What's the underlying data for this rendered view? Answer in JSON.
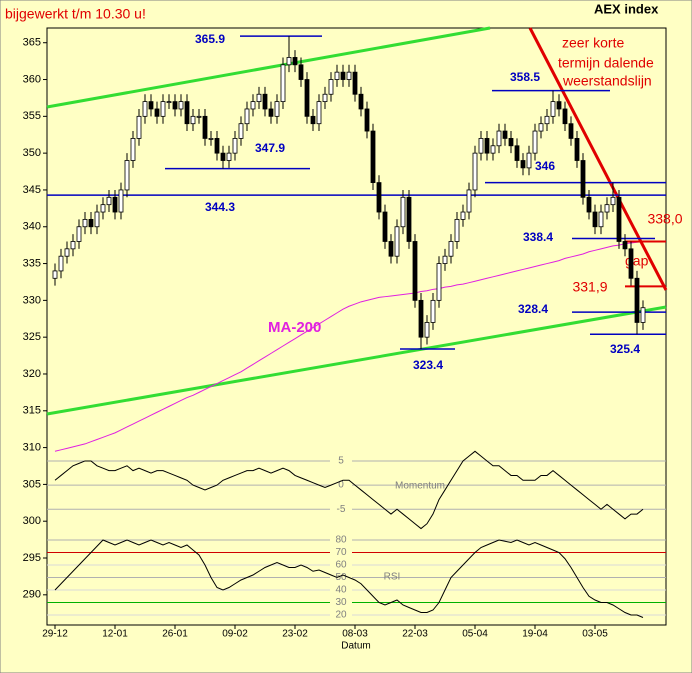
{
  "chart_data": {
    "type": "candlestick",
    "title": "AEX index",
    "subtitle": "bijgewerkt t/m 10.30 u!",
    "x_label": "Datum",
    "categories": [
      "29-12",
      null,
      null,
      null,
      null,
      null,
      null,
      null,
      null,
      null,
      "12-01",
      null,
      null,
      null,
      null,
      null,
      null,
      null,
      null,
      null,
      "26-01",
      null,
      null,
      null,
      null,
      null,
      null,
      null,
      null,
      null,
      "09-02",
      null,
      null,
      null,
      null,
      null,
      null,
      null,
      null,
      null,
      "23-02",
      null,
      null,
      null,
      null,
      null,
      null,
      null,
      null,
      null,
      "08-03",
      null,
      null,
      null,
      null,
      null,
      null,
      null,
      null,
      null,
      "22-03",
      null,
      null,
      null,
      null,
      null,
      null,
      null,
      null,
      null,
      "05-04",
      null,
      null,
      null,
      null,
      null,
      null,
      null,
      null,
      null,
      "19-04",
      null,
      null,
      null,
      null,
      null,
      null,
      null,
      null,
      null,
      "03-05",
      null,
      null,
      null,
      null,
      null,
      null,
      null,
      null
    ],
    "open": [
      333,
      334,
      336,
      337,
      338,
      340,
      341,
      340,
      342,
      343,
      344,
      342,
      345,
      349,
      352,
      355,
      357,
      356,
      355,
      357,
      357,
      356,
      357,
      354,
      355,
      355,
      352,
      352,
      350,
      349,
      350,
      352,
      354,
      356,
      357,
      358,
      356,
      355,
      357,
      362,
      363,
      362,
      360,
      355,
      354,
      357,
      358,
      360,
      361,
      360,
      361,
      358,
      356,
      353,
      346,
      342,
      338,
      336,
      340,
      344,
      338,
      330,
      325,
      327,
      330,
      335,
      336,
      338,
      341,
      342,
      345,
      350,
      352,
      350,
      351,
      353,
      352,
      351,
      349,
      348,
      350,
      353,
      354,
      355,
      357,
      356,
      354,
      352,
      349,
      344,
      342,
      340,
      342,
      343,
      344,
      338,
      337,
      333,
      327
    ],
    "high": [
      335,
      337,
      338,
      339,
      341,
      342,
      342,
      343,
      344,
      345,
      345,
      346,
      350,
      353,
      356,
      358,
      358,
      357,
      358,
      358,
      358,
      358,
      358,
      356,
      356,
      356,
      353,
      353,
      351,
      351,
      353,
      355,
      357,
      358,
      359,
      359,
      357,
      358,
      363,
      365.9,
      364,
      363,
      361,
      356,
      358,
      359,
      361,
      362,
      362,
      362,
      362,
      359,
      357,
      354,
      347,
      343,
      339,
      341,
      345,
      345,
      339,
      331,
      328,
      331,
      336,
      337,
      339,
      342,
      343,
      346,
      351,
      353,
      353,
      352,
      354,
      354,
      353,
      352,
      350,
      351,
      354,
      355,
      356,
      358.5,
      358,
      357,
      355,
      353,
      350,
      345,
      343,
      343,
      344,
      346,
      345,
      339,
      338,
      334,
      330
    ],
    "low": [
      332,
      333,
      335,
      336,
      337,
      339,
      339,
      339,
      341,
      342,
      341,
      341,
      344,
      348,
      351,
      354,
      355,
      354,
      354,
      356,
      355,
      355,
      353,
      353,
      354,
      351,
      351,
      349,
      347.9,
      348,
      349,
      351,
      353,
      355,
      356,
      355,
      354,
      354,
      356,
      361,
      361,
      359,
      354,
      353,
      353,
      356,
      357,
      359,
      359,
      359,
      357,
      355,
      352,
      345,
      341,
      337,
      335,
      335,
      339,
      337,
      329,
      323.4,
      324,
      326,
      329,
      334,
      335,
      337,
      340,
      341,
      344,
      349,
      349,
      349,
      350,
      351,
      350,
      348,
      347,
      347,
      349,
      352,
      353,
      354,
      355,
      353,
      351,
      348,
      343,
      341,
      339,
      339,
      341,
      342,
      337,
      336,
      332,
      325.4,
      326
    ],
    "close": [
      334,
      336,
      337,
      338,
      340,
      341,
      340,
      342,
      343,
      344,
      342,
      345,
      349,
      352,
      355,
      357,
      356,
      355,
      357,
      357,
      356,
      357,
      354,
      355,
      355,
      352,
      352,
      350,
      349,
      350,
      352,
      354,
      356,
      357,
      358,
      356,
      355,
      357,
      362,
      363,
      362,
      360,
      355,
      354,
      357,
      358,
      360,
      361,
      360,
      361,
      358,
      356,
      353,
      346,
      342,
      338,
      336,
      340,
      344,
      338,
      330,
      325,
      327,
      330,
      335,
      336,
      338,
      341,
      342,
      345,
      350,
      352,
      350,
      351,
      353,
      352,
      351,
      349,
      348,
      350,
      353,
      354,
      355,
      357,
      356,
      354,
      352,
      349,
      344,
      342,
      340,
      342,
      343,
      344,
      338,
      337,
      333,
      327,
      329
    ],
    "ma200": {
      "name": "MA-200",
      "color": "#e020e0",
      "values": [
        309.5,
        309.7,
        309.9,
        310.1,
        310.3,
        310.5,
        310.8,
        311.1,
        311.4,
        311.7,
        312,
        312.4,
        312.8,
        313.2,
        313.6,
        314,
        314.4,
        314.8,
        315.2,
        315.6,
        316,
        316.4,
        316.8,
        317.1,
        317.5,
        317.9,
        318.3,
        318.7,
        319.1,
        319.5,
        319.9,
        320.3,
        320.8,
        321.3,
        321.8,
        322.3,
        322.8,
        323.3,
        323.8,
        324.3,
        324.8,
        325.3,
        325.8,
        326.3,
        326.8,
        327.3,
        327.8,
        328.3,
        328.8,
        329.2,
        329.5,
        329.8,
        330,
        330.2,
        330.4,
        330.5,
        330.6,
        330.7,
        330.8,
        330.9,
        331,
        331.2,
        331.3,
        331.5,
        331.6,
        331.8,
        331.9,
        332.1,
        332.2,
        332.4,
        332.6,
        332.8,
        333,
        333.2,
        333.4,
        333.6,
        333.8,
        334,
        334.2,
        334.4,
        334.6,
        334.8,
        335,
        335.2,
        335.4,
        335.7,
        335.9,
        336.1,
        336.3,
        336.6,
        336.8,
        337,
        337.2,
        337.4,
        337.5,
        337.7,
        337.8,
        337.9,
        338
      ]
    },
    "ylim": [
      285.9,
      367
    ],
    "yticks": [
      290,
      295,
      300,
      305,
      310,
      315,
      320,
      325,
      330,
      335,
      340,
      345,
      350,
      355,
      360,
      365
    ],
    "indicators": [
      {
        "name": "Momentum",
        "ylim": [
          -9.3,
          8.1
        ],
        "yticks": [
          5,
          0,
          -5
        ],
        "line_colors": [
          "#b0b0b0",
          "#b0b0b0",
          "#b0b0b0"
        ],
        "values": [
          1,
          2,
          3,
          4,
          4.5,
          5,
          5,
          4,
          3.5,
          3,
          3,
          3.5,
          4,
          3,
          3.5,
          3,
          2.5,
          3,
          3,
          2.5,
          2,
          1.5,
          1,
          0,
          -0.5,
          -1,
          -0.5,
          0,
          1,
          1.5,
          2,
          2.5,
          3,
          3,
          3.5,
          3,
          2.5,
          3,
          3.5,
          3,
          2,
          1.5,
          1,
          0.5,
          0,
          -0.5,
          0,
          0.5,
          1,
          1,
          0,
          -1,
          -2,
          -3,
          -4,
          -5,
          -6,
          -5,
          -6,
          -7,
          -8,
          -9,
          -8,
          -6,
          -3,
          -1,
          1,
          3,
          5,
          6,
          7,
          6,
          5,
          4,
          4,
          3,
          2,
          2,
          1,
          1,
          1,
          2,
          2,
          3,
          2,
          1,
          0,
          -1,
          -2,
          -3,
          -4,
          -5,
          -4,
          -5,
          -6,
          -7,
          -6,
          -6,
          -5
        ]
      },
      {
        "name": "RSI",
        "ylim": [
          12,
          92
        ],
        "yticks": [
          80,
          70,
          60,
          50,
          40,
          30,
          20
        ],
        "line_colors": [
          "#b0b0b0",
          "#d00000",
          "#d8d8d8",
          "#b0b0b0",
          "#d8d8d8",
          "#00b000",
          "#d8d8d8"
        ],
        "values": [
          40,
          45,
          50,
          55,
          60,
          65,
          70,
          75,
          80,
          78,
          76,
          78,
          80,
          78,
          76,
          78,
          80,
          78,
          76,
          78,
          76,
          74,
          76,
          72,
          68,
          60,
          50,
          42,
          40,
          42,
          45,
          48,
          50,
          52,
          55,
          58,
          60,
          62,
          60,
          58,
          58,
          60,
          58,
          55,
          56,
          54,
          52,
          50,
          52,
          50,
          48,
          45,
          40,
          35,
          30,
          28,
          30,
          32,
          28,
          26,
          24,
          22,
          22,
          24,
          30,
          40,
          50,
          55,
          60,
          65,
          70,
          74,
          76,
          78,
          80,
          79,
          78,
          80,
          78,
          76,
          78,
          76,
          74,
          72,
          70,
          65,
          58,
          50,
          42,
          35,
          32,
          30,
          30,
          28,
          25,
          22,
          20,
          20,
          18
        ]
      }
    ],
    "levels": [
      {
        "value": 365.9,
        "color": "#0000c0"
      },
      {
        "value": 347.9,
        "color": "#0000c0"
      },
      {
        "value": 344.3,
        "color": "#0000c0"
      },
      {
        "value": 323.4,
        "color": "#0000c0"
      },
      {
        "value": 358.5,
        "color": "#0000c0"
      },
      {
        "value": 346,
        "color": "#0000c0"
      },
      {
        "value": 338.4,
        "color": "#0000c0"
      },
      {
        "value": 328.4,
        "color": "#0000c0"
      },
      {
        "value": 325.4,
        "color": "#0000c0"
      },
      {
        "value": 338.0,
        "label": "338,0",
        "color": "#e00000"
      },
      {
        "value": 331.9,
        "label": "331,9",
        "color": "#e00000"
      }
    ],
    "annotations": [
      "zeer korte",
      "termijn dalende",
      "weerstandslijn",
      "gap"
    ]
  }
}
